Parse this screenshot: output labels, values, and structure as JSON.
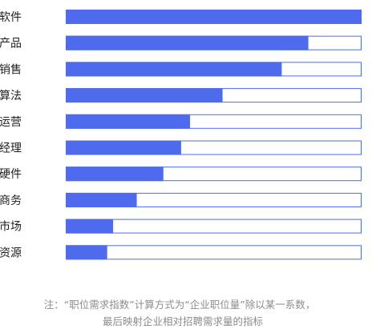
{
  "chart_data": {
    "type": "bar",
    "orientation": "horizontal",
    "categories": [
      "软件",
      "产品",
      "销售",
      "算法",
      "运营",
      "项目经理",
      "硬件",
      "商务",
      "市场",
      "人力资源"
    ],
    "values": [
      100,
      82,
      73,
      53,
      42,
      39,
      33,
      24,
      16,
      14
    ],
    "xlim": [
      0,
      100
    ],
    "grid": false,
    "colors": {
      "bar": "#4f6bed",
      "track_border": "#4f6bed",
      "track_fill": "#ffffff"
    }
  },
  "note": {
    "line1": "注：“职位需求指数”计算方式为“企业职位量”除以某一系数，",
    "line2": "最后映射企业相对招聘需求量的指标"
  }
}
